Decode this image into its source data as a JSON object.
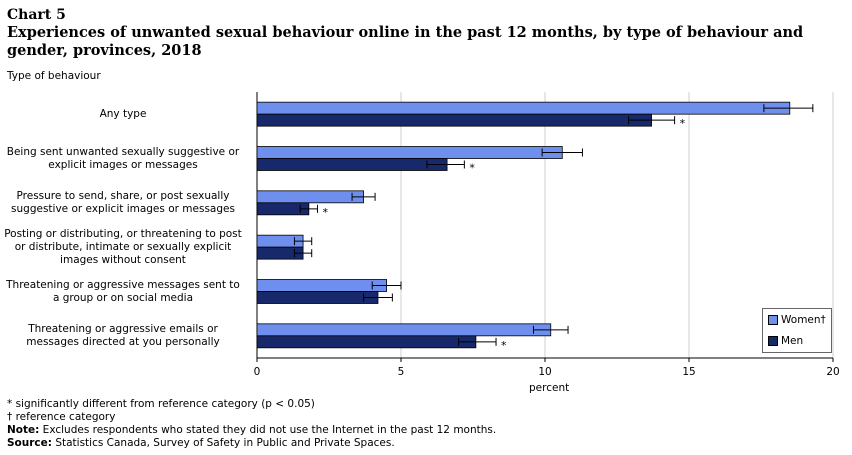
{
  "header": {
    "chart_number": "Chart 5",
    "title": "Experiences of unwanted sexual behaviour online in the past 12 months, by type of behaviour and gender, provinces, 2018"
  },
  "chart_data": {
    "type": "bar",
    "orientation": "horizontal",
    "y_title": "Type of behaviour",
    "xlabel": "percent",
    "xlim": [
      0,
      20
    ],
    "xticks": [
      "0",
      "5",
      "10",
      "15",
      "20"
    ],
    "grid": true,
    "legend_position": "bottom-right",
    "categories": [
      "Any type",
      "Being sent unwanted sexually suggestive or explicit images or messages",
      "Pressure to send, share, or post sexually suggestive or explicit images or messages",
      "Posting or distributing, or threatening to post or distribute, intimate or sexually explicit images without consent",
      "Threatening or aggressive messages sent to a group or on social media",
      "Threatening or aggressive emails or messages directed at you personally"
    ],
    "category_lines": [
      [
        "Any type"
      ],
      [
        "Being sent unwanted sexually suggestive or",
        "explicit images or messages"
      ],
      [
        "Pressure to send, share, or post sexually",
        "suggestive or explicit images or messages"
      ],
      [
        "Posting or distributing, or threatening to post",
        "or distribute, intimate or sexually explicit",
        "images without consent"
      ],
      [
        "Threatening or aggressive messages sent to",
        "a group or on social media"
      ],
      [
        "Threatening or aggressive emails or",
        "messages directed at you personally"
      ]
    ],
    "series": [
      {
        "name": "Women†",
        "color": "#6f8fef",
        "values": [
          18.5,
          10.6,
          3.7,
          1.6,
          4.5,
          10.2
        ],
        "ci_low": [
          17.6,
          9.9,
          3.3,
          1.3,
          4.0,
          9.6
        ],
        "ci_high": [
          19.3,
          11.3,
          4.1,
          1.9,
          5.0,
          10.8
        ],
        "significance": [
          "",
          "",
          "",
          "",
          "",
          ""
        ]
      },
      {
        "name": "Men",
        "color": "#17296b",
        "values": [
          13.7,
          6.6,
          1.8,
          1.6,
          4.2,
          7.6
        ],
        "ci_low": [
          12.9,
          5.9,
          1.5,
          1.3,
          3.7,
          7.0
        ],
        "ci_high": [
          14.5,
          7.2,
          2.1,
          1.9,
          4.7,
          8.3
        ],
        "significance": [
          "*",
          "*",
          "*",
          "",
          "",
          "*"
        ]
      }
    ]
  },
  "footnotes": {
    "significance": "* significantly different from reference category (p < 0.05)",
    "reference": "† reference category",
    "note_label": "Note:",
    "note_text": " Excludes respondents who stated they did not use the Internet in the past 12 months.",
    "source_label": "Source:",
    "source_text": " Statistics Canada, Survey of Safety in Public and Private Spaces."
  }
}
